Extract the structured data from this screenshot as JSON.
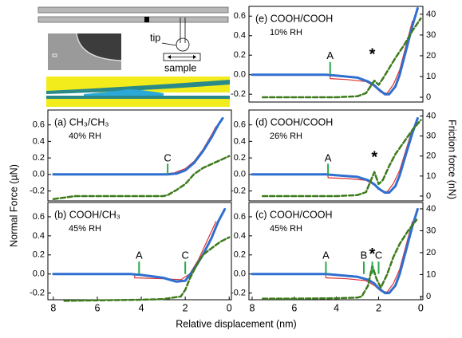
{
  "figure": {
    "xlabel": "Relative displacement (nm)",
    "ylabel": "Normal Force (µN)",
    "y2label": "Friction force (nN)",
    "tip": "tip",
    "sample": "sample"
  },
  "chart_data": [
    {
      "type": "line",
      "title": "(e) COOH/COOH",
      "subtitle": "10% RH",
      "xlim": [
        8.15,
        -0.1
      ],
      "ylim": [
        -0.28,
        0.7
      ],
      "yticks": [
        -0.2,
        {
          "value": 0,
          "label": "0.0"
        },
        0.2,
        0.4,
        0.6
      ],
      "y2lim": [
        -2.3,
        43.8
      ],
      "y2ticks": [
        0,
        10,
        20,
        30,
        40
      ],
      "series": [
        {
          "color": "#e03030",
          "width": 1.2,
          "x": [
            8,
            6,
            4.5,
            4.3,
            4.3,
            3.5,
            2.6,
            2.2,
            1.9,
            1.6,
            1.3,
            1,
            0.7,
            0.4
          ],
          "values": [
            0,
            0,
            0,
            0,
            -0.04,
            -0.05,
            -0.07,
            -0.12,
            -0.18,
            -0.19,
            -0.1,
            0.05,
            0.3,
            0.55
          ]
        },
        {
          "color": "#2f6fcf",
          "width": 3,
          "x": [
            8,
            6,
            4.5,
            4,
            3,
            2.5,
            2.2,
            2,
            1.7,
            1.5,
            1.2,
            1,
            0.7,
            0.4,
            0.15
          ],
          "values": [
            0,
            0,
            0,
            -0.01,
            -0.03,
            -0.07,
            -0.11,
            -0.15,
            -0.2,
            -0.2,
            -0.12,
            0,
            0.25,
            0.5,
            0.68
          ]
        },
        {
          "color": "#3d7a1c",
          "width": 2.5,
          "dash": true,
          "axis": "y2",
          "x": [
            7.5,
            6,
            4,
            3,
            2.6,
            2.4,
            2.2,
            2,
            1.8,
            1.5,
            1.2,
            0.8,
            0.4,
            0
          ],
          "values": [
            0,
            0,
            0,
            0.5,
            2,
            5,
            8,
            6,
            9,
            14,
            19,
            25,
            32,
            38
          ]
        }
      ],
      "annotations": [
        {
          "label": "A",
          "x": 4.3,
          "marker": true
        },
        {
          "label": "*",
          "x": 2.3,
          "marker": false
        }
      ]
    },
    {
      "type": "line",
      "title": "(d) COOH/COOH",
      "subtitle": "26% RH",
      "xlim": [
        8.15,
        -0.1
      ],
      "ylim": [
        -0.32,
        0.78
      ],
      "yticks": [
        -0.2,
        {
          "value": 0,
          "label": "0.0"
        },
        0.2,
        0.4,
        0.6
      ],
      "y2lim": [
        -2.4,
        43
      ],
      "y2ticks": [
        0,
        10,
        20,
        30,
        40
      ],
      "series": [
        {
          "color": "#e03030",
          "width": 1.2,
          "x": [
            8,
            6,
            4.6,
            4.4,
            4.4,
            3.5,
            2.6,
            2.2,
            1.9,
            1.6,
            1.3,
            1,
            0.7,
            0.4
          ],
          "values": [
            0,
            0,
            0,
            0,
            -0.04,
            -0.05,
            -0.07,
            -0.13,
            -0.2,
            -0.21,
            -0.11,
            0.05,
            0.3,
            0.55
          ]
        },
        {
          "color": "#2f6fcf",
          "width": 3,
          "x": [
            8,
            6,
            4.5,
            4,
            3,
            2.5,
            2.2,
            2,
            1.7,
            1.5,
            1.2,
            1,
            0.7,
            0.4,
            0.15
          ],
          "values": [
            0,
            0,
            0,
            -0.01,
            -0.03,
            -0.07,
            -0.12,
            -0.17,
            -0.22,
            -0.22,
            -0.14,
            -0.01,
            0.25,
            0.5,
            0.68
          ]
        },
        {
          "color": "#3d7a1c",
          "width": 2.5,
          "dash": true,
          "axis": "y2",
          "x": [
            7.5,
            6,
            4,
            3,
            2.6,
            2.4,
            2.2,
            2,
            1.8,
            1.5,
            1.2,
            0.8,
            0.4,
            0
          ],
          "values": [
            0,
            0,
            0,
            0.5,
            2,
            7,
            12,
            6,
            8,
            15,
            21,
            27,
            33,
            38
          ]
        }
      ],
      "annotations": [
        {
          "label": "A",
          "x": 4.4,
          "marker": true
        },
        {
          "label": "*",
          "x": 2.2,
          "marker": false
        }
      ]
    },
    {
      "type": "line",
      "title": "(c) COOH/COOH",
      "subtitle": "45% RH",
      "xlim": [
        8.15,
        -0.1
      ],
      "xticks": [
        8,
        6,
        4,
        2,
        0
      ],
      "ylim": [
        -0.27,
        0.75
      ],
      "yticks": [
        -0.2,
        {
          "value": 0,
          "label": "0.0"
        },
        0.2,
        0.4,
        0.6
      ],
      "y2lim": [
        -1.5,
        42.9
      ],
      "y2ticks": [
        0,
        10,
        20,
        30,
        40
      ],
      "series": [
        {
          "color": "#e03030",
          "width": 1.2,
          "x": [
            8,
            6,
            4.7,
            4.5,
            4.5,
            3.5,
            2.6,
            2.2,
            1.9,
            1.6,
            1.3,
            1,
            0.7,
            0.4
          ],
          "values": [
            0,
            0,
            0,
            0,
            -0.04,
            -0.05,
            -0.07,
            -0.12,
            -0.18,
            -0.19,
            -0.1,
            0.05,
            0.3,
            0.55
          ]
        },
        {
          "color": "#2f6fcf",
          "width": 3,
          "x": [
            8,
            6,
            4.5,
            4,
            3,
            2.5,
            2.2,
            2,
            1.7,
            1.5,
            1.2,
            1,
            0.7,
            0.4,
            0.15
          ],
          "values": [
            0,
            0,
            0,
            -0.01,
            -0.03,
            -0.06,
            -0.1,
            -0.15,
            -0.2,
            -0.2,
            -0.12,
            0,
            0.25,
            0.5,
            0.68
          ]
        },
        {
          "color": "#3d7a1c",
          "width": 2.5,
          "dash": true,
          "axis": "y2",
          "x": [
            7.5,
            6,
            4,
            3,
            2.8,
            2.5,
            2.3,
            2.1,
            1.9,
            1.6,
            1.3,
            1,
            0.6,
            0.2
          ],
          "values": [
            -1,
            -1,
            -0.8,
            -0.5,
            0,
            5,
            14,
            8,
            4,
            10,
            18,
            24,
            30,
            35
          ]
        }
      ],
      "annotations": [
        {
          "label": "A",
          "x": 4.5,
          "marker": true
        },
        {
          "label": "B",
          "x": 2.7,
          "marker": true
        },
        {
          "label": "*",
          "x": 2.3,
          "marker": true
        },
        {
          "label": "C",
          "x": 2.0,
          "marker": true
        }
      ]
    },
    {
      "type": "line",
      "title": "(a) CH₃/CH₃",
      "subtitle": "40% RH",
      "xlim": [
        8.25,
        -0.1
      ],
      "ylim": [
        -0.32,
        0.78
      ],
      "yticks": [
        -0.2,
        {
          "value": 0,
          "label": "0.0"
        },
        0.2,
        0.4,
        0.6
      ],
      "y2lim": [
        -2.4,
        43
      ],
      "series": [
        {
          "color": "#e03030",
          "width": 1.2,
          "x": [
            8,
            6,
            4,
            3,
            2.5,
            2,
            1.6,
            1.2,
            0.8,
            0.6
          ],
          "values": [
            0,
            0,
            0,
            0.005,
            0.02,
            0.07,
            0.16,
            0.3,
            0.48,
            0.58
          ]
        },
        {
          "color": "#2f6fcf",
          "width": 3,
          "x": [
            8,
            6,
            4,
            3,
            2.8,
            2.4,
            2,
            1.6,
            1.2,
            0.8,
            0.5,
            0.3
          ],
          "values": [
            0,
            0,
            0,
            0,
            0,
            0.01,
            0.05,
            0.14,
            0.28,
            0.45,
            0.6,
            0.68
          ]
        },
        {
          "color": "#3d7a1c",
          "width": 2.5,
          "dash": true,
          "axis": "y2",
          "x": [
            8,
            7,
            6,
            4,
            3,
            2.8,
            2.4,
            2,
            1.6,
            1.2,
            0.8,
            0.4,
            0
          ],
          "values": [
            -1.5,
            0,
            0,
            0,
            0,
            0.5,
            3,
            6,
            11,
            14,
            16,
            18,
            20
          ]
        }
      ],
      "annotations": [
        {
          "label": "C",
          "x": 2.8,
          "marker": true
        }
      ]
    },
    {
      "type": "line",
      "title": "(b) COOH/CH₃",
      "subtitle": "45% RH",
      "xlim": [
        8.25,
        -0.1
      ],
      "xticks": [
        8,
        6,
        4,
        2,
        0
      ],
      "ylim": [
        -0.27,
        0.75
      ],
      "yticks": [
        -0.2,
        {
          "value": 0,
          "label": "0.0"
        },
        0.2,
        0.4,
        0.6
      ],
      "y2lim": [
        -1.5,
        42.9
      ],
      "series": [
        {
          "color": "#e03030",
          "width": 1.2,
          "x": [
            8,
            6,
            4.5,
            4.3,
            4.3,
            3,
            2.2,
            1.8,
            1.4,
            1,
            0.6
          ],
          "values": [
            0,
            0,
            0,
            0,
            -0.04,
            -0.05,
            -0.06,
            0,
            0.15,
            0.35,
            0.55
          ]
        },
        {
          "color": "#2f6fcf",
          "width": 3,
          "x": [
            8,
            6,
            4.5,
            4,
            3,
            2.4,
            2,
            1.6,
            1.2,
            0.8,
            0.5,
            0.2
          ],
          "values": [
            0,
            0,
            0,
            -0.01,
            -0.04,
            -0.08,
            -0.07,
            0.05,
            0.2,
            0.38,
            0.55,
            0.68
          ]
        },
        {
          "color": "#3d7a1c",
          "width": 2.5,
          "dash": true,
          "axis": "y2",
          "x": [
            7.5,
            6,
            4,
            3,
            2.2,
            2,
            1.8,
            1.5,
            1.2,
            0.8,
            0.4,
            0
          ],
          "values": [
            -2,
            -1.8,
            -1.5,
            -1.2,
            0,
            3,
            8,
            14,
            19,
            22,
            25,
            27
          ]
        }
      ],
      "annotations": [
        {
          "label": "A",
          "x": 4.1,
          "marker": true
        },
        {
          "label": "C",
          "x": 2.0,
          "marker": true
        }
      ]
    }
  ]
}
